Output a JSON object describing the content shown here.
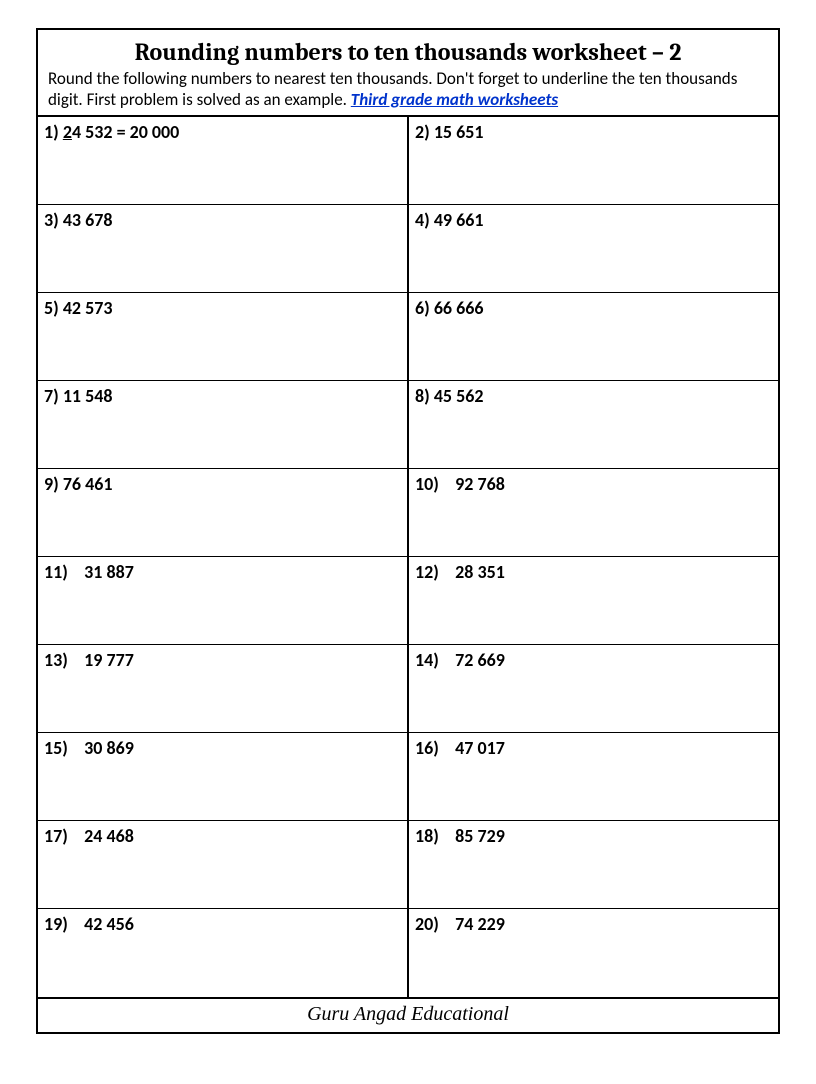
{
  "title": "Rounding numbers to ten thousands worksheet – 2",
  "instructions_a": "Round the following numbers to nearest ten thousands. Don't forget to underline the ten thousands digit. First problem is solved as an example.  ",
  "link_text": "Third grade math worksheets",
  "footer": "Guru Angad Educational",
  "first_problem": {
    "label": "1)  ",
    "underlined": "2",
    "rest": "4 532 = 20 000"
  },
  "problems": [
    {
      "n": "2)",
      "v": "15 651"
    },
    {
      "n": "3)",
      "v": "43 678"
    },
    {
      "n": "4)",
      "v": "49 661"
    },
    {
      "n": "5)",
      "v": "42 573"
    },
    {
      "n": "6)",
      "v": "66 666"
    },
    {
      "n": "7)",
      "v": "11 548"
    },
    {
      "n": "8)",
      "v": "45 562"
    },
    {
      "n": "9)",
      "v": "76 461"
    },
    {
      "n": "10)",
      "v": "   92 768"
    },
    {
      "n": "11)",
      "v": "   31 887"
    },
    {
      "n": "12)",
      "v": "   28 351"
    },
    {
      "n": "13)",
      "v": "   19 777"
    },
    {
      "n": "14)",
      "v": "   72 669"
    },
    {
      "n": "15)",
      "v": "   30 869"
    },
    {
      "n": "16)",
      "v": "   47 017"
    },
    {
      "n": "17)",
      "v": "   24 468"
    },
    {
      "n": "18)",
      "v": "   85 729"
    },
    {
      "n": "19)",
      "v": "   42 456"
    },
    {
      "n": "20)",
      "v": "   74 229"
    }
  ],
  "colors": {
    "border": "#000000",
    "background": "#ffffff",
    "text": "#000000",
    "link": "#0033cc"
  }
}
